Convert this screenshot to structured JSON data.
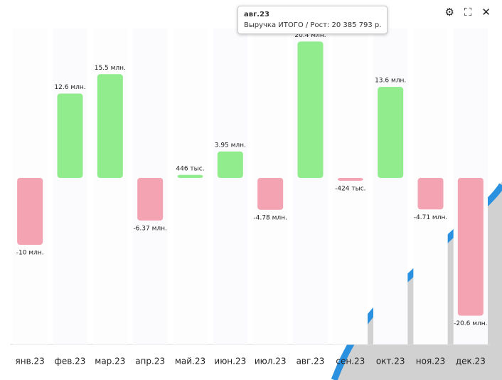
{
  "chart_data": {
    "type": "bar",
    "categories": [
      "янв.23",
      "фев.23",
      "мар.23",
      "апр.23",
      "май.23",
      "июн.23",
      "июл.23",
      "авг.23",
      "сен.23",
      "окт.23",
      "ноя.23",
      "дек.23"
    ],
    "values": [
      -10,
      12.6,
      15.5,
      -6.37,
      0.446,
      3.95,
      -4.78,
      20.385793,
      -0.424,
      13.6,
      -4.71,
      -20.6
    ],
    "value_labels": [
      "-10 млн.",
      "12.6 млн.",
      "15.5 млн.",
      "-6.37 млн.",
      "446 тыс.",
      "3.95 млн.",
      "-4.78 млн.",
      "20.4 млн.",
      "-424 тыс.",
      "13.6 млн.",
      "-4.71 млн.",
      "-20.6 млн."
    ],
    "positive_color": "#90ec8c",
    "negative_color": "#f4a3b2",
    "tooltip": {
      "text": "Выручка ИТОГО / Рост: 20 385 793 р."
    }
  }
}
